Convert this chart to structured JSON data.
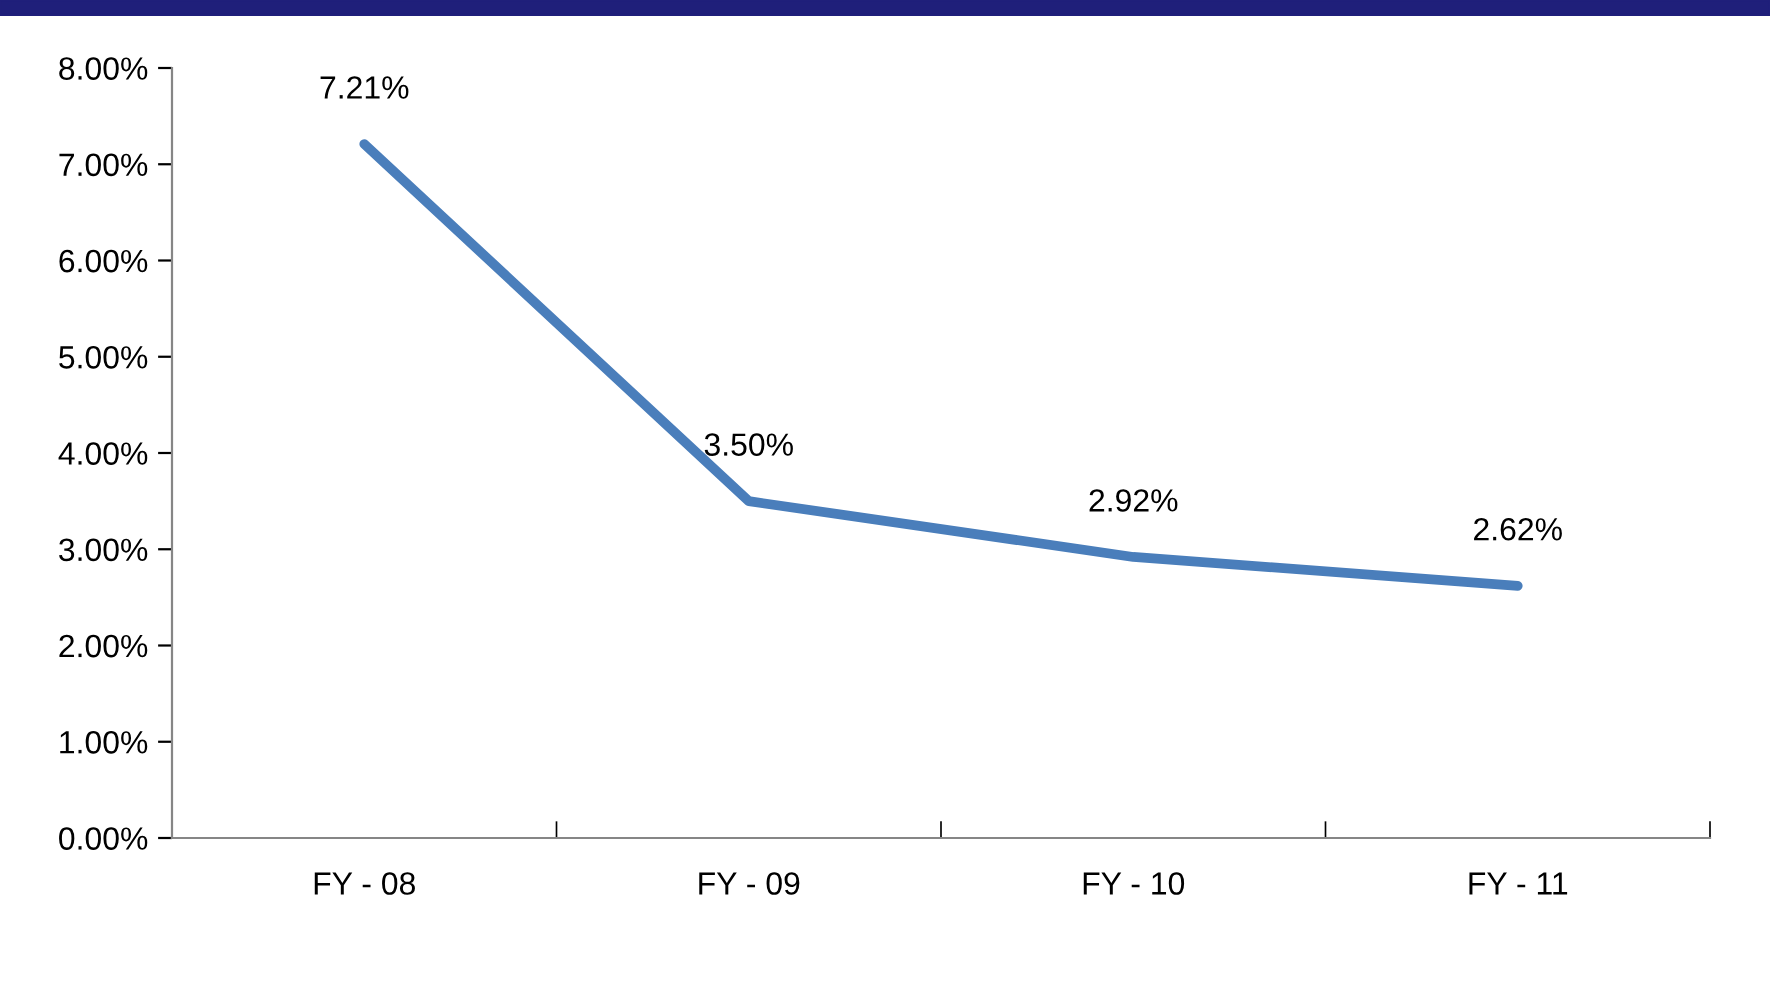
{
  "chart_data": {
    "type": "line",
    "categories": [
      "FY - 08",
      "FY - 09",
      "FY - 10",
      "FY - 11"
    ],
    "series": [
      {
        "color": "#4a7ebb",
        "values": [
          7.21,
          3.5,
          2.92,
          2.62
        ],
        "value_labels": [
          "7.21%",
          "3.50%",
          "2.92%",
          "2.62%"
        ]
      }
    ],
    "ylim": [
      0,
      8
    ],
    "yticks": [
      {
        "value": 0,
        "label": "0.00%"
      },
      {
        "value": 1,
        "label": "1.00%"
      },
      {
        "value": 2,
        "label": "2.00%"
      },
      {
        "value": 3,
        "label": "3.00%"
      },
      {
        "value": 4,
        "label": "4.00%"
      },
      {
        "value": 5,
        "label": "5.00%"
      },
      {
        "value": 6,
        "label": "6.00%"
      },
      {
        "value": 7,
        "label": "7.00%"
      },
      {
        "value": 8,
        "label": "8.00%"
      }
    ],
    "grid": false,
    "marker": "none",
    "line_style": "solid"
  }
}
